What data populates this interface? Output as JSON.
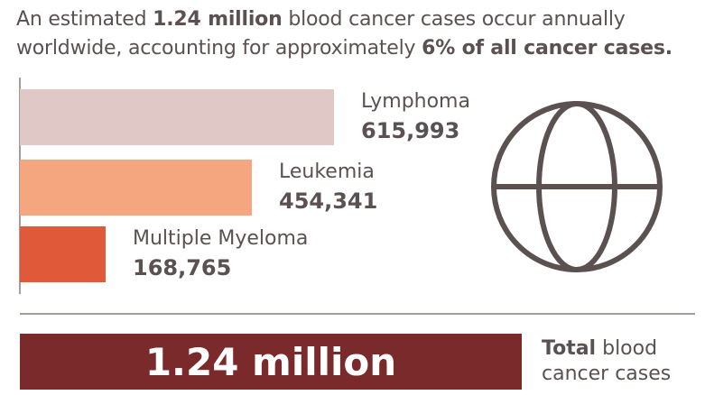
{
  "headline": {
    "part1": "An estimated ",
    "bold1": "1.24 million",
    "part2": " blood cancer cases occur annually worldwide, accounting for approximately ",
    "bold2": "6% of all cancer cases."
  },
  "chart_data": {
    "type": "bar",
    "orientation": "horizontal",
    "title": "",
    "xlabel": "",
    "ylabel": "",
    "categories": [
      "Lymphoma",
      "Leukemia",
      "Multiple Myeloma"
    ],
    "values": [
      615993,
      454341,
      168765
    ],
    "value_labels": [
      "615,993",
      "454,341",
      "168,765"
    ],
    "colors": [
      "#dfc8c6",
      "#f6a67f",
      "#e05a39"
    ],
    "grid": false,
    "legend": "none"
  },
  "icons": {
    "globe": "globe-icon"
  },
  "total": {
    "value": "1.24 million",
    "caption_bold": "Total",
    "caption_rest": " blood cancer cases",
    "bar_color": "#7b2a2b"
  }
}
